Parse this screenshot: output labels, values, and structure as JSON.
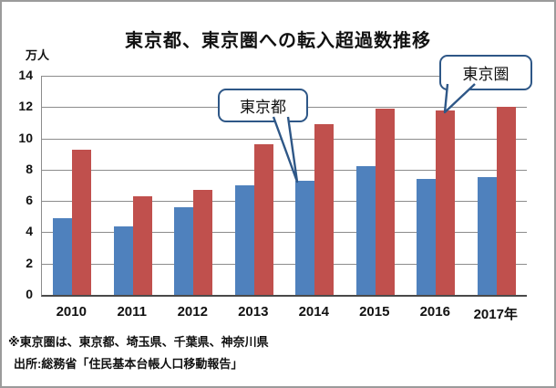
{
  "chart": {
    "title": "東京都、東京圏への転入超過数推移",
    "unit_label": "万人",
    "callouts": [
      {
        "label": "東京都"
      },
      {
        "label": "東京圏"
      }
    ],
    "footnote1": "※東京圏は、東京都、埼玉県、千葉県、神奈川県",
    "footnote2": "出所:総務省「住民基本台帳人口移動報告」",
    "colors": {
      "tokyo_to_bar": "#4F81BD",
      "tokyo_ken_bar": "#C0504D",
      "callout_border": "#2E5787",
      "gridline": "#8C8C8C",
      "axis": "#4A4A4A"
    }
  },
  "chart_data": {
    "type": "bar",
    "title": "東京都、東京圏への転入超過数推移",
    "categories": [
      "2010",
      "2011",
      "2012",
      "2013",
      "2014",
      "2015",
      "2016",
      "2017年"
    ],
    "series": [
      {
        "name": "東京都",
        "color": "#4F81BD",
        "values": [
          4.9,
          4.4,
          5.6,
          7.0,
          7.3,
          8.2,
          7.4,
          7.5
        ]
      },
      {
        "name": "東京圏",
        "color": "#C0504D",
        "values": [
          9.3,
          6.3,
          6.7,
          9.6,
          10.9,
          11.9,
          11.8,
          12.0
        ]
      }
    ],
    "xlabel": "",
    "ylabel": "万人",
    "ylim": [
      0,
      14
    ],
    "yticks": [
      0,
      2,
      4,
      6,
      8,
      10,
      12,
      14
    ],
    "grid": true,
    "legend_position": "none (series labeled by callout bubbles)"
  }
}
